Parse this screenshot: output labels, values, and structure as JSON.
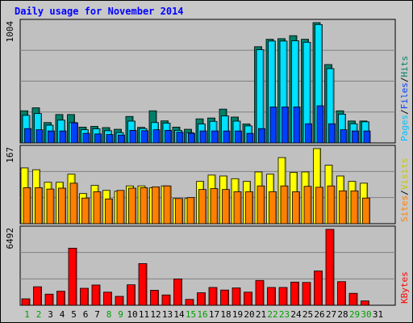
{
  "title": "Daily usage for November 2014",
  "chart_data": [
    {
      "type": "bar",
      "categories": [
        "1",
        "2",
        "3",
        "4",
        "5",
        "6",
        "7",
        "8",
        "9",
        "10",
        "11",
        "12",
        "13",
        "14",
        "15",
        "16",
        "17",
        "18",
        "19",
        "20",
        "21",
        "22",
        "23",
        "24",
        "25",
        "26",
        "27",
        "28",
        "29",
        "30",
        "31"
      ],
      "weekend_days": [
        "1",
        "2",
        "8",
        "9",
        "15",
        "16",
        "22",
        "23",
        "29",
        "30"
      ],
      "ymax_label": "1004",
      "ylim": [
        0,
        1004
      ],
      "side_labels": [
        "Pages",
        "Files",
        "Hits"
      ],
      "series": [
        {
          "name": "Hits",
          "color": "#00806a",
          "values": [
            268,
            293,
            170,
            237,
            237,
            132,
            138,
            128,
            114,
            221,
            130,
            268,
            184,
            132,
            114,
            201,
            208,
            282,
            216,
            158,
            803,
            865,
            870,
            895,
            865,
            1004,
            654,
            268,
            183,
            183,
            0
          ]
        },
        {
          "name": "Files",
          "color": "#00e0ff",
          "values": [
            230,
            245,
            148,
            190,
            170,
            110,
            118,
            102,
            86,
            182,
            120,
            170,
            165,
            105,
            86,
            158,
            180,
            225,
            182,
            142,
            778,
            850,
            850,
            852,
            840,
            988,
            620,
            240,
            160,
            176,
            0
          ]
        },
        {
          "name": "Pages",
          "color": "#0040ff",
          "values": [
            120,
            110,
            100,
            100,
            168,
            80,
            75,
            70,
            66,
            105,
            102,
            110,
            105,
            90,
            80,
            100,
            100,
            100,
            100,
            80,
            120,
            300,
            300,
            300,
            160,
            310,
            160,
            110,
            100,
            100,
            0
          ]
        }
      ]
    },
    {
      "type": "bar",
      "categories": [
        "1",
        "2",
        "3",
        "4",
        "5",
        "6",
        "7",
        "8",
        "9",
        "10",
        "11",
        "12",
        "13",
        "14",
        "15",
        "16",
        "17",
        "18",
        "19",
        "20",
        "21",
        "22",
        "23",
        "24",
        "25",
        "26",
        "27",
        "28",
        "29",
        "30",
        "31"
      ],
      "ymax_label": "167",
      "ylim": [
        0,
        167
      ],
      "side_labels": [
        "Sites",
        "Visits"
      ],
      "series": [
        {
          "name": "Visits",
          "color": "#ffff00",
          "values": [
            124,
            120,
            92,
            92,
            110,
            67,
            85,
            74,
            72,
            84,
            84,
            80,
            84,
            56,
            56,
            94,
            108,
            106,
            100,
            94,
            115,
            110,
            147,
            114,
            115,
            167,
            130,
            106,
            94,
            90,
            0
          ]
        },
        {
          "name": "Sites",
          "color": "#ff8000",
          "values": [
            80,
            80,
            77,
            79,
            90,
            57,
            71,
            55,
            74,
            79,
            80,
            82,
            84,
            56,
            58,
            76,
            78,
            76,
            71,
            71,
            84,
            71,
            84,
            71,
            83,
            81,
            84,
            73,
            73,
            57,
            0
          ]
        }
      ]
    },
    {
      "type": "bar",
      "categories": [
        "1",
        "2",
        "3",
        "4",
        "5",
        "6",
        "7",
        "8",
        "9",
        "10",
        "11",
        "12",
        "13",
        "14",
        "15",
        "16",
        "17",
        "18",
        "19",
        "20",
        "21",
        "22",
        "23",
        "24",
        "25",
        "26",
        "27",
        "28",
        "29",
        "30",
        "31"
      ],
      "ymax_label": "6492",
      "ylim": [
        0,
        6492
      ],
      "side_labels": [
        "KBytes"
      ],
      "series": [
        {
          "name": "KBytes",
          "color": "#ff0000",
          "values": [
            550,
            1580,
            950,
            1200,
            4880,
            1450,
            1730,
            1120,
            760,
            1750,
            3560,
            1280,
            880,
            2250,
            500,
            1070,
            1520,
            1300,
            1480,
            1120,
            2120,
            1520,
            1520,
            1980,
            1950,
            2930,
            6492,
            2020,
            1020,
            370,
            0
          ]
        }
      ]
    }
  ]
}
